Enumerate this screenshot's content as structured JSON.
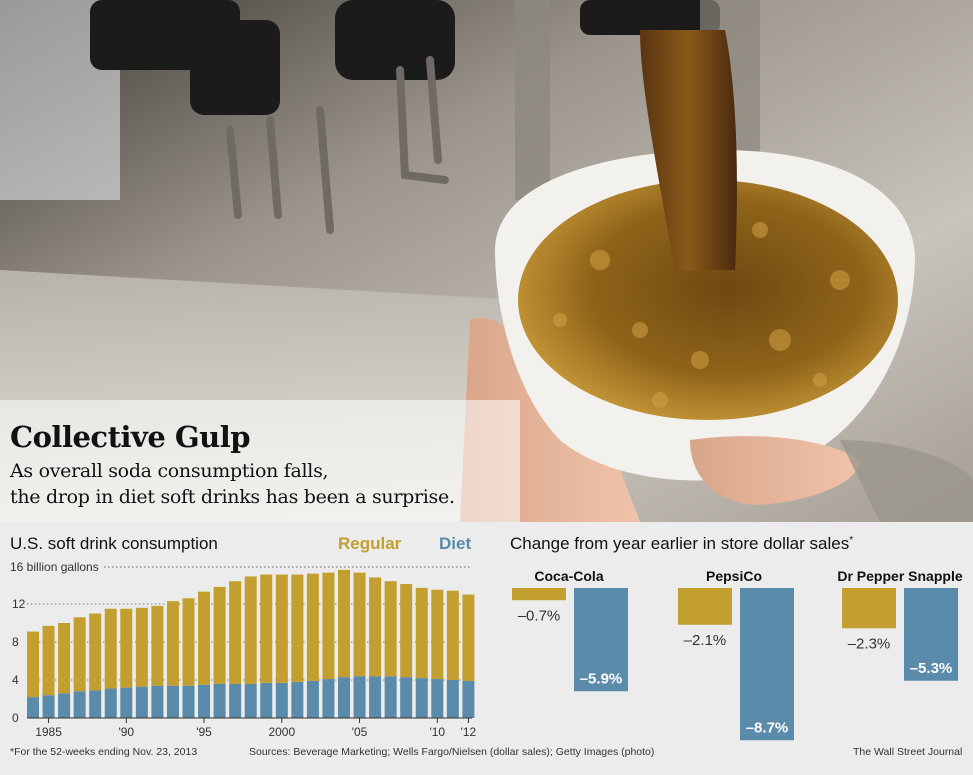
{
  "headline": "Collective Gulp",
  "dek_line1": "As overall soda consumption falls,",
  "dek_line2": "the drop in diet soft drinks has been a surprise.",
  "colors": {
    "regular": "#c29f2e",
    "diet": "#5a8bab",
    "panel": "#ececec"
  },
  "chart_data": [
    {
      "type": "bar",
      "stacked": true,
      "title": "U.S. soft drink consumption",
      "unit_label": "16 billion gallons",
      "x": [
        1984,
        1985,
        1986,
        1987,
        1988,
        1989,
        1990,
        1991,
        1992,
        1993,
        1994,
        1995,
        1996,
        1997,
        1998,
        1999,
        2000,
        2001,
        2002,
        2003,
        2004,
        2005,
        2006,
        2007,
        2008,
        2009,
        2010,
        2011,
        2012
      ],
      "x_tick_labels": [
        "1985",
        "'90",
        "'95",
        "2000",
        "'05",
        "'10",
        "'12"
      ],
      "y_ticks": [
        "0",
        "4",
        "8",
        "12"
      ],
      "ylim": [
        0,
        16
      ],
      "legend_position": "top-right",
      "series": [
        {
          "name": "Regular",
          "values": [
            6.9,
            7.3,
            7.4,
            7.8,
            8.1,
            8.4,
            8.3,
            8.3,
            8.4,
            8.9,
            9.2,
            9.8,
            10.2,
            10.8,
            11.3,
            11.4,
            11.4,
            11.3,
            11.3,
            11.2,
            11.3,
            10.9,
            10.4,
            10.0,
            9.8,
            9.5,
            9.4,
            9.4,
            9.1
          ]
        },
        {
          "name": "Diet",
          "values": [
            2.2,
            2.4,
            2.6,
            2.8,
            2.9,
            3.1,
            3.2,
            3.3,
            3.4,
            3.4,
            3.4,
            3.5,
            3.6,
            3.6,
            3.6,
            3.7,
            3.7,
            3.8,
            3.9,
            4.1,
            4.3,
            4.4,
            4.4,
            4.4,
            4.3,
            4.2,
            4.1,
            4.0,
            3.9
          ]
        }
      ]
    },
    {
      "type": "bar",
      "title": "Change from year earlier in store dollar sales",
      "title_mark": "*",
      "companies": [
        "Coca-Cola",
        "PepsiCo",
        "Dr Pepper Snapple"
      ],
      "series": [
        {
          "name": "Regular",
          "values": [
            -0.7,
            -2.1,
            -2.3
          ],
          "labels": [
            "–0.7%",
            "–2.1%",
            "–2.3%"
          ]
        },
        {
          "name": "Diet",
          "values": [
            -5.9,
            -8.7,
            -5.3
          ],
          "labels": [
            "–5.9%",
            "–8.7%",
            "–5.3%"
          ]
        }
      ]
    }
  ],
  "footnote": "*For the 52-weeks ending Nov. 23, 2013",
  "sources": "Sources: Beverage Marketing; Wells Fargo/Nielsen (dollar sales); Getty Images (photo)",
  "credit": "The Wall Street Journal"
}
